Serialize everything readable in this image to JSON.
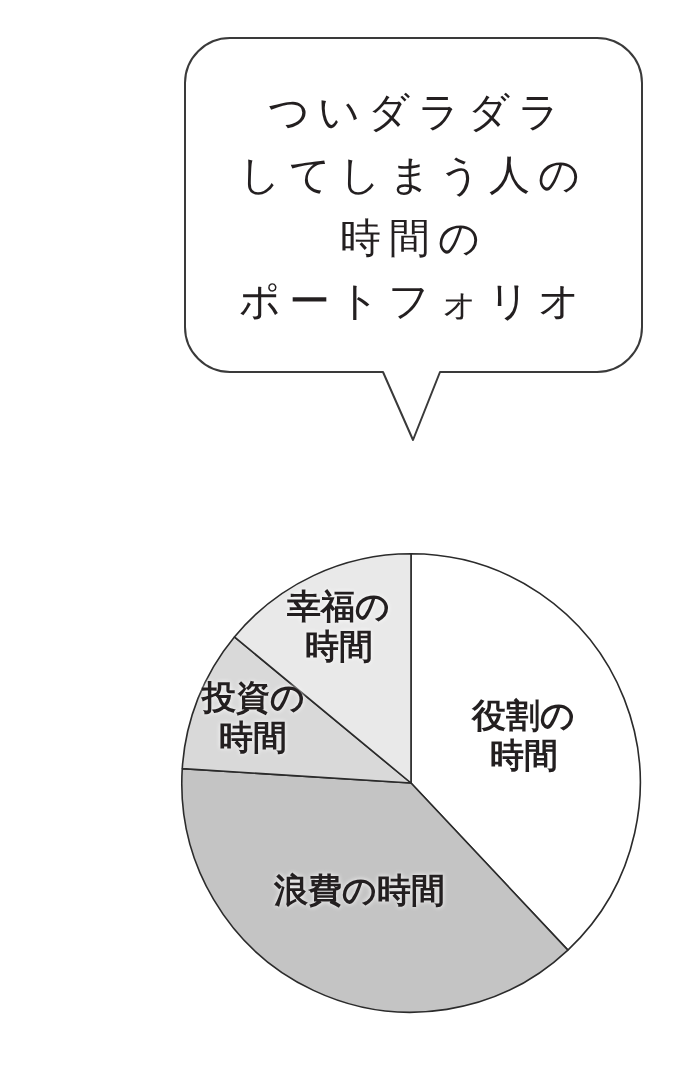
{
  "chart_data": {
    "type": "pie",
    "title": "ついダラダラしてしまう人の時間のポートフォリオ",
    "categories": [
      "役割の時間",
      "浪費の時間",
      "投資の時間",
      "幸福の時間"
    ],
    "values": [
      38,
      38,
      10,
      14
    ],
    "colors": [
      "#ffffff",
      "#c4c4c4",
      "#d9d9d9",
      "#e9e9e9"
    ],
    "legend": false
  }
}
